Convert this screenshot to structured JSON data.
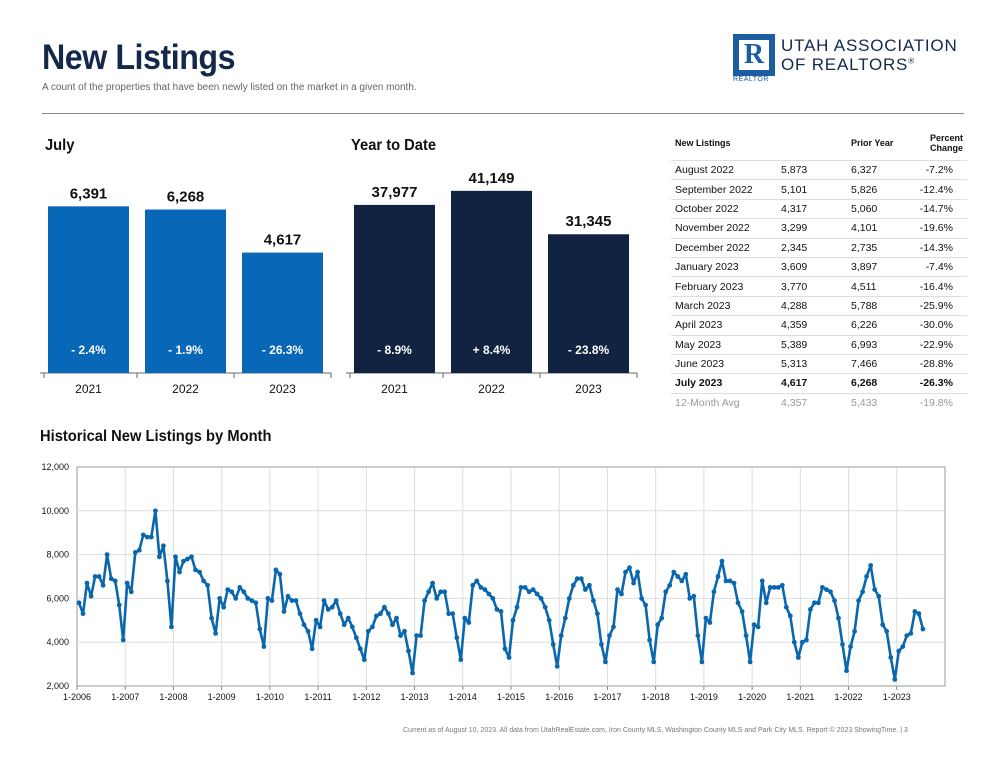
{
  "header": {
    "title": "New Listings",
    "subtitle": "A count of the properties that have been newly listed on the market in a given month."
  },
  "logo": {
    "letter": "R",
    "line1": "UTAH ASSOCIATION",
    "line2": "OF REALTORS",
    "mark": "®",
    "small": "REALTOR"
  },
  "colors": {
    "month_bar": "#0867b7",
    "ytd_bar": "#112341",
    "line": "#0a67ad",
    "title": "#14284b"
  },
  "chart_data": [
    {
      "type": "bar",
      "title": "July",
      "categories": [
        "2021",
        "2022",
        "2023"
      ],
      "values": [
        6391,
        6268,
        4617
      ],
      "value_labels": [
        "6,391",
        "6,268",
        "4,617"
      ],
      "change_labels": [
        "- 2.4%",
        "- 1.9%",
        "- 26.3%"
      ]
    },
    {
      "type": "bar",
      "title": "Year to Date",
      "categories": [
        "2021",
        "2022",
        "2023"
      ],
      "values": [
        37977,
        41149,
        31345
      ],
      "value_labels": [
        "37,977",
        "41,149",
        "31,345"
      ],
      "change_labels": [
        "- 8.9%",
        "+ 8.4%",
        "- 23.8%"
      ]
    },
    {
      "type": "table",
      "columns": [
        "New Listings",
        "",
        "Prior Year",
        "Percent Change"
      ],
      "rows": [
        [
          "August 2022",
          "5,873",
          "6,327",
          "-7.2%"
        ],
        [
          "September 2022",
          "5,101",
          "5,826",
          "-12.4%"
        ],
        [
          "October 2022",
          "4,317",
          "5,060",
          "-14.7%"
        ],
        [
          "November 2022",
          "3,299",
          "4,101",
          "-19.6%"
        ],
        [
          "December 2022",
          "2,345",
          "2,735",
          "-14.3%"
        ],
        [
          "January 2023",
          "3,609",
          "3,897",
          "-7.4%"
        ],
        [
          "February 2023",
          "3,770",
          "4,511",
          "-16.4%"
        ],
        [
          "March 2023",
          "4,288",
          "5,788",
          "-25.9%"
        ],
        [
          "April 2023",
          "4,359",
          "6,226",
          "-30.0%"
        ],
        [
          "May 2023",
          "5,389",
          "6,993",
          "-22.9%"
        ],
        [
          "June 2023",
          "5,313",
          "7,466",
          "-28.8%"
        ],
        [
          "July 2023",
          "4,617",
          "6,268",
          "-26.3%"
        ]
      ],
      "footer_row": [
        "12-Month Avg",
        "4,357",
        "5,433",
        "-19.8%"
      ]
    },
    {
      "type": "line",
      "title": "Historical New Listings by Month",
      "ylim": [
        2000,
        12000
      ],
      "yticks": [
        2000,
        4000,
        6000,
        8000,
        10000,
        12000
      ],
      "ytick_labels": [
        "2,000",
        "4,000",
        "6,000",
        "8,000",
        "10,000",
        "12,000"
      ],
      "xtick_labels": [
        "1-2006",
        "1-2007",
        "1-2008",
        "1-2009",
        "1-2010",
        "1-2011",
        "1-2012",
        "1-2013",
        "1-2014",
        "1-2015",
        "1-2016",
        "1-2017",
        "1-2018",
        "1-2019",
        "1-2020",
        "1-2021",
        "1-2022",
        "1-2023"
      ],
      "grid": true,
      "series": [
        {
          "start": "1-2006",
          "values": [
            5800,
            5300,
            6700,
            6100,
            7000,
            7000,
            6600,
            8000,
            6900,
            6800,
            5700,
            4100,
            6700,
            6300,
            8100,
            8200,
            8900,
            8800,
            8800,
            10000,
            7900,
            8400,
            6800,
            4700,
            7900,
            7200,
            7700,
            7800,
            7900,
            7300,
            7200,
            6800,
            6600,
            5100,
            4400,
            6000,
            5600,
            6400,
            6300,
            6000,
            6500,
            6300,
            6000,
            5900,
            5800,
            4600,
            3800,
            6000,
            5900,
            7300,
            7100,
            5400,
            6100,
            5900,
            5900,
            5300,
            4800,
            4500,
            3700,
            5000,
            4700,
            5900,
            5500,
            5600,
            5900,
            5300,
            4800,
            5100,
            4700,
            4200,
            3700,
            3200,
            4500,
            4700,
            5200,
            5300,
            5600,
            5300,
            4800,
            5100,
            4300,
            4500,
            3600,
            2600,
            4300,
            4300,
            5900,
            6300,
            6700,
            6000,
            6300,
            6300,
            5300,
            5300,
            4200,
            3200,
            5100,
            4900,
            6600,
            6800,
            6500,
            6400,
            6200,
            6000,
            5500,
            5400,
            3700,
            3300,
            5000,
            5600,
            6500,
            6500,
            6300,
            6400,
            6200,
            6000,
            5600,
            5000,
            3900,
            2900,
            4300,
            5100,
            6000,
            6600,
            6900,
            6900,
            6400,
            6600,
            5900,
            5300,
            3900,
            3100,
            4300,
            4700,
            6400,
            6200,
            7200,
            7400,
            6700,
            7200,
            6000,
            5700,
            4100,
            3100,
            4800,
            5100,
            6300,
            6600,
            7200,
            7000,
            6800,
            7100,
            6000,
            6100,
            4300,
            3100,
            5100,
            4900,
            6300,
            7000,
            7700,
            6800,
            6800,
            6700,
            5800,
            5400,
            4300,
            3100,
            4800,
            4700,
            6800,
            5800,
            6500,
            6500,
            6500,
            6600,
            5600,
            5200,
            4000,
            3300,
            4000,
            4100,
            5500,
            5800,
            5800,
            6500,
            6400,
            6300,
            5900,
            5100,
            3900,
            2700,
            3800,
            4500,
            5900,
            6300,
            7000,
            7500,
            6400,
            6100,
            4800,
            4500,
            3300,
            2300,
            3600,
            3800,
            4300,
            4400,
            5400,
            5300,
            4600
          ]
        }
      ]
    }
  ],
  "footer": {
    "text": "Current as of August 10, 2023. All data from UtahRealEstate.com, Iron County MLS, Washington County MLS and Park City MLS. Report © 2023 ShowingTime. | 3"
  }
}
